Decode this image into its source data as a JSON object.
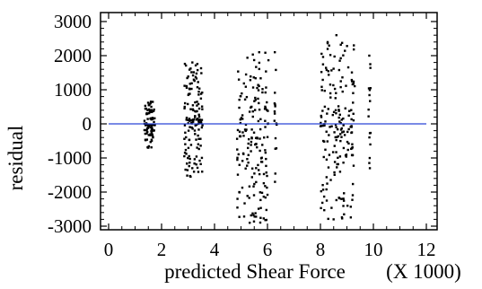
{
  "chart_data": {
    "type": "scatter",
    "title": "",
    "xlabel": "predicted Shear Force",
    "ylabel": "residual",
    "x_multiplier_label": "(X 1000)",
    "xlim": [
      0,
      12
    ],
    "ylim": [
      -3000,
      3000
    ],
    "x_ticks": [
      0,
      2,
      4,
      6,
      8,
      10,
      12
    ],
    "y_ticks": [
      -3000,
      -2000,
      -1000,
      0,
      1000,
      2000,
      3000
    ],
    "x_tick_labels": [
      "0",
      "2",
      "4",
      "6",
      "8",
      "10",
      "12"
    ],
    "y_tick_labels": [
      "-3000",
      "-2000",
      "-1000",
      "0",
      "1000",
      "2000",
      "3000"
    ],
    "grid": false,
    "reference_line": {
      "y": 0,
      "color": "#2a44d6"
    },
    "point_color": "#000000",
    "clusters": [
      {
        "x_center": 1.55,
        "x_spread": 0.2,
        "y_min": -700,
        "y_max": 650,
        "n": 90
      },
      {
        "x_center": 3.2,
        "x_spread": 0.35,
        "y_min": -1550,
        "y_max": 1800,
        "n": 140
      },
      {
        "x_center": 5.45,
        "x_spread": 0.6,
        "y_min": -2900,
        "y_max": 2100,
        "n": 170
      },
      {
        "x_center": 6.3,
        "x_spread": 0.05,
        "y_min": -1700,
        "y_max": 2100,
        "n": 15
      },
      {
        "x_center": 8.65,
        "x_spread": 0.65,
        "y_min": -2800,
        "y_max": 2600,
        "n": 180
      },
      {
        "x_center": 9.85,
        "x_spread": 0.05,
        "y_min": -1300,
        "y_max": 2000,
        "n": 15
      }
    ]
  }
}
